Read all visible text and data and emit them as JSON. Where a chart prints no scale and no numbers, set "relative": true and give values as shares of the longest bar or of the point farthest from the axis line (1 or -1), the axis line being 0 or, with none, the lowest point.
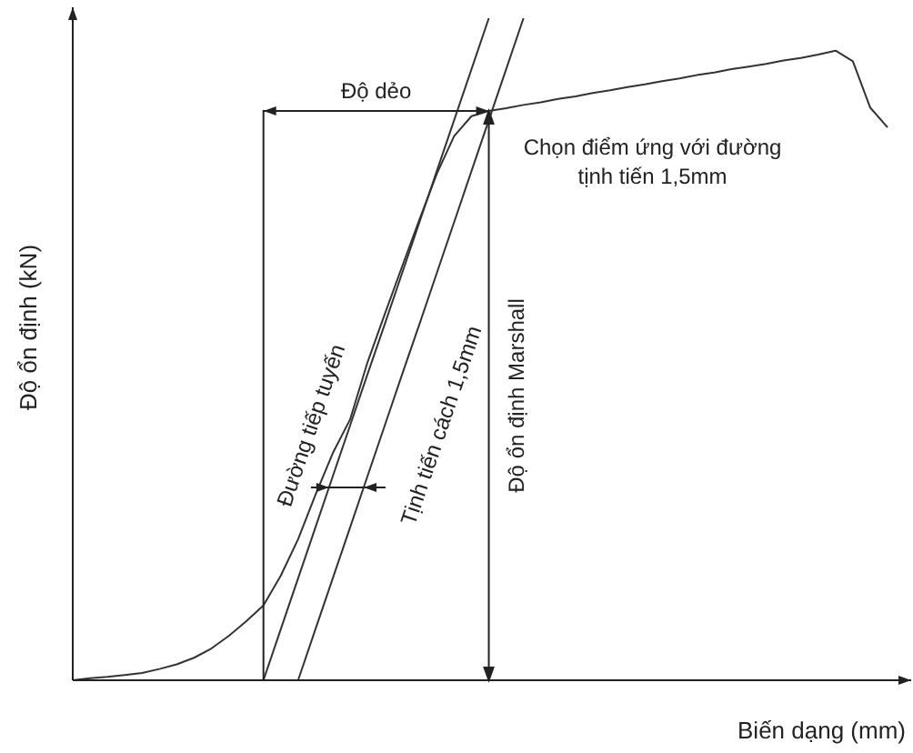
{
  "chart_data": {
    "type": "line",
    "relative": true,
    "xlabel": "Biến dạng (mm)",
    "ylabel": "Độ ổn định (kN)",
    "marker": "none",
    "line_style": "solid",
    "categories": [
      null,
      null,
      null,
      null,
      null,
      null,
      null,
      null,
      null,
      null,
      null,
      null,
      null,
      null,
      null,
      null,
      null,
      null,
      null,
      null,
      null,
      null,
      null,
      null,
      null,
      null,
      null,
      null,
      null,
      null,
      null,
      null,
      null,
      null,
      null,
      null,
      null,
      null,
      null,
      null,
      null,
      null,
      null,
      null,
      null,
      null,
      null,
      null
    ],
    "series": [
      {
        "color": "#333333",
        "values": [
          0,
          0.003,
          0.005,
          0.008,
          0.011,
          0.017,
          0.024,
          0.034,
          0.048,
          0.067,
          0.089,
          0.113,
          0.158,
          0.213,
          0.28,
          0.343,
          0.394,
          0.48,
          0.553,
          0.625,
          0.696,
          0.765,
          0.822,
          0.852,
          0.86,
          0.864,
          0.869,
          0.873,
          0.878,
          0.882,
          0.887,
          0.891,
          0.896,
          0.9,
          0.905,
          0.909,
          0.914,
          0.918,
          0.923,
          0.927,
          0.931,
          0.936,
          0.94,
          0.945,
          0.951,
          0.935,
          0.865,
          0.835
        ]
      },
      {
        "color": "#333333",
        "values": [
          null,
          null,
          null,
          null,
          null,
          null,
          null,
          null,
          null,
          null,
          null,
          0,
          0.077,
          0.154,
          0.231,
          0.308,
          0.385,
          0.462,
          0.538,
          0.615,
          0.692,
          0.769,
          0.846,
          0.923,
          1.0,
          null,
          null,
          null,
          null,
          null,
          null,
          null,
          null,
          null,
          null,
          null,
          null,
          null,
          null,
          null,
          null,
          null,
          null,
          null,
          null,
          null,
          null,
          null
        ]
      },
      {
        "color": "#333333",
        "values": [
          null,
          null,
          null,
          null,
          null,
          null,
          null,
          null,
          null,
          null,
          null,
          null,
          null,
          0,
          0.077,
          0.154,
          0.231,
          0.308,
          0.385,
          0.462,
          0.538,
          0.615,
          0.692,
          0.769,
          0.846,
          0.923,
          1.0,
          null,
          null,
          null,
          null,
          null,
          null,
          null,
          null,
          null,
          null,
          null,
          null,
          null,
          null,
          null,
          null,
          null,
          null,
          null,
          null,
          null
        ]
      }
    ],
    "annotations": [
      "Độ dẻo",
      "Chọn điểm ứng với đường\ntịnh tiến 1,5mm",
      "Độ ổn định Marshall",
      "Đường tiếp tuyến",
      "Tịnh tiến cách 1,5mm"
    ]
  }
}
